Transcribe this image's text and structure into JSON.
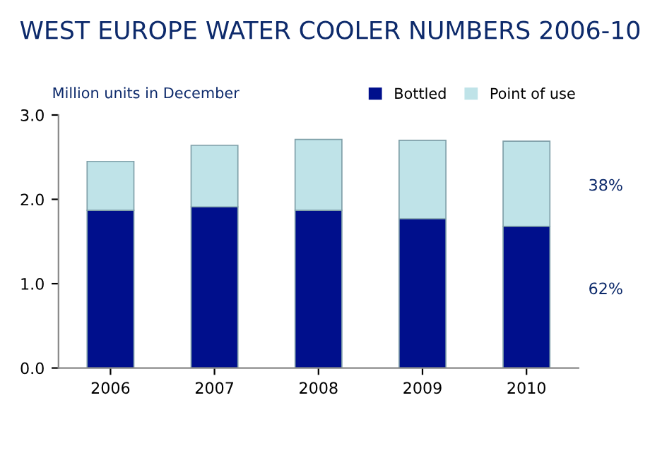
{
  "chart_data": {
    "type": "bar",
    "stacked": true,
    "title": "WEST EUROPE WATER COOLER NUMBERS 2006-10",
    "subtitle": "Million units in December",
    "categories": [
      "2006",
      "2007",
      "2008",
      "2009",
      "2010"
    ],
    "series": [
      {
        "name": "Bottled",
        "color": "#000f8c",
        "values": [
          1.87,
          1.91,
          1.87,
          1.77,
          1.68
        ]
      },
      {
        "name": "Point of use",
        "color": "#bfe3e8",
        "values": [
          0.58,
          0.73,
          0.84,
          0.93,
          1.01
        ]
      }
    ],
    "ylim": [
      0,
      3.0
    ],
    "yticks": [
      {
        "value": 0,
        "label": "0.0"
      },
      {
        "value": 1,
        "label": "1.0"
      },
      {
        "value": 2,
        "label": "2.0"
      },
      {
        "value": 3,
        "label": "3.0"
      }
    ],
    "annotations": [
      "38%",
      "62%"
    ],
    "grid": false,
    "legend": "top right"
  }
}
